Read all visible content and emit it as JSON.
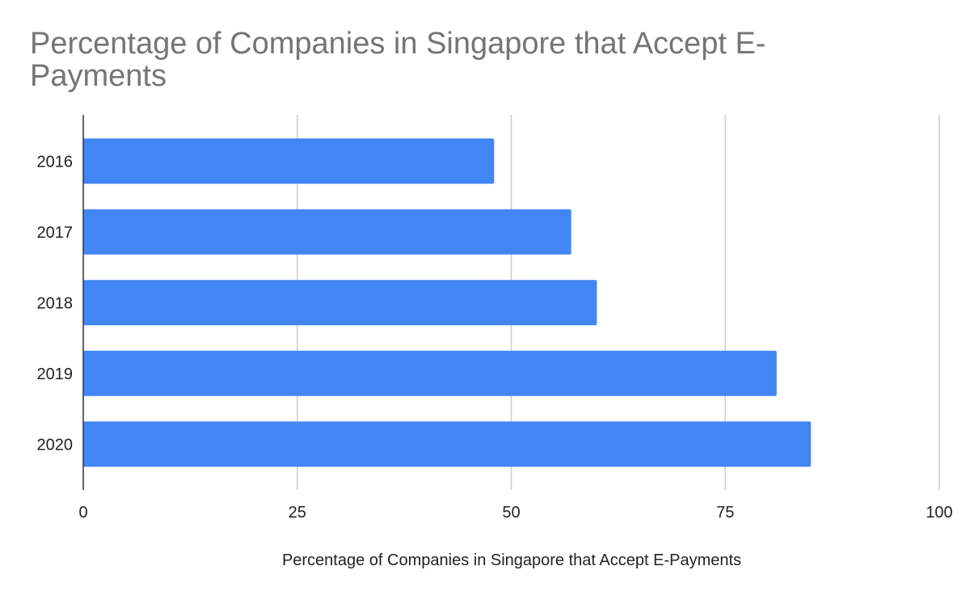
{
  "chart_data": {
    "type": "bar",
    "orientation": "horizontal",
    "title": "Percentage of Companies in Singapore that Accept E-Payments",
    "xlabel": "Percentage of Companies in Singapore that Accept E-Payments",
    "ylabel": "",
    "categories": [
      "2016",
      "2017",
      "2018",
      "2019",
      "2020"
    ],
    "values": [
      48,
      57,
      60,
      81,
      85
    ],
    "xlim": [
      0,
      100
    ],
    "xticks": [
      0,
      25,
      50,
      75,
      100
    ],
    "xtick_labels": [
      "0",
      "25",
      "50",
      "75",
      "100"
    ],
    "grid": true,
    "legend": "none",
    "bar_color": "#4285f4",
    "grid_color": "#cccccc",
    "axis_color": "#333333"
  }
}
